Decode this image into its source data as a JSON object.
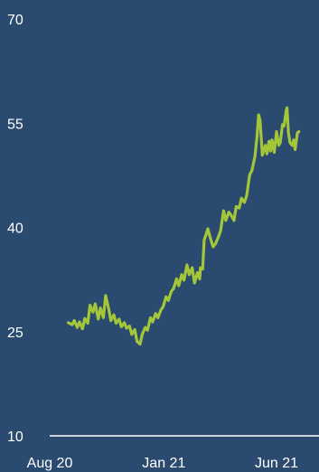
{
  "colors": {
    "background": "#2b4a6f",
    "line": "#a4c639",
    "axis": "#ffffff",
    "text": "#ffffff"
  },
  "chart_data": {
    "type": "line",
    "title": "",
    "xlabel": "",
    "ylabel": "",
    "ylim": [
      10,
      70
    ],
    "y_ticks": [
      10,
      25,
      40,
      55,
      70
    ],
    "x_ticks": [
      "Aug 20",
      "Jan 21",
      "Jun 21"
    ],
    "x_range": [
      "2020-08",
      "2021-07"
    ],
    "grid": false,
    "legend": "none",
    "series": [
      {
        "color": "#a4c639",
        "points": [
          [
            "2020-08-26",
            26.3
          ],
          [
            "2020-08-31",
            26.0
          ],
          [
            "2020-09-03",
            26.6
          ],
          [
            "2020-09-07",
            25.6
          ],
          [
            "2020-09-10",
            26.4
          ],
          [
            "2020-09-14",
            25.4
          ],
          [
            "2020-09-17",
            26.9
          ],
          [
            "2020-09-21",
            26.2
          ],
          [
            "2020-09-24",
            28.8
          ],
          [
            "2020-09-28",
            27.8
          ],
          [
            "2020-10-01",
            29.0
          ],
          [
            "2020-10-05",
            26.8
          ],
          [
            "2020-10-08",
            28.4
          ],
          [
            "2020-10-12",
            27.0
          ],
          [
            "2020-10-15",
            30.2
          ],
          [
            "2020-10-19",
            28.3
          ],
          [
            "2020-10-22",
            26.6
          ],
          [
            "2020-10-26",
            27.4
          ],
          [
            "2020-10-29",
            26.2
          ],
          [
            "2020-11-02",
            26.8
          ],
          [
            "2020-11-05",
            25.7
          ],
          [
            "2020-11-09",
            26.3
          ],
          [
            "2020-11-12",
            25.5
          ],
          [
            "2020-11-16",
            25.8
          ],
          [
            "2020-11-19",
            24.6
          ],
          [
            "2020-11-23",
            25.3
          ],
          [
            "2020-11-26",
            23.6
          ],
          [
            "2020-11-30",
            23.2
          ],
          [
            "2020-12-03",
            24.6
          ],
          [
            "2020-12-07",
            25.6
          ],
          [
            "2020-12-10",
            25.2
          ],
          [
            "2020-12-14",
            27.0
          ],
          [
            "2020-12-17",
            26.4
          ],
          [
            "2020-12-21",
            27.6
          ],
          [
            "2020-12-24",
            27.0
          ],
          [
            "2020-12-28",
            28.1
          ],
          [
            "2020-12-31",
            28.6
          ],
          [
            "2021-01-04",
            30.0
          ],
          [
            "2021-01-07",
            29.5
          ],
          [
            "2021-01-11",
            30.8
          ],
          [
            "2021-01-14",
            31.2
          ],
          [
            "2021-01-18",
            32.6
          ],
          [
            "2021-01-21",
            31.6
          ],
          [
            "2021-01-25",
            33.2
          ],
          [
            "2021-01-28",
            32.4
          ],
          [
            "2021-02-01",
            34.6
          ],
          [
            "2021-02-04",
            33.2
          ],
          [
            "2021-02-08",
            34.2
          ],
          [
            "2021-02-11",
            32.0
          ],
          [
            "2021-02-15",
            33.5
          ],
          [
            "2021-02-18",
            32.6
          ],
          [
            "2021-02-19",
            34.2
          ],
          [
            "2021-02-22",
            34.0
          ],
          [
            "2021-02-24",
            38.2
          ],
          [
            "2021-02-26",
            38.8
          ],
          [
            "2021-03-01",
            39.8
          ],
          [
            "2021-03-04",
            38.6
          ],
          [
            "2021-03-08",
            37.2
          ],
          [
            "2021-03-11",
            37.6
          ],
          [
            "2021-03-15",
            38.6
          ],
          [
            "2021-03-18",
            39.5
          ],
          [
            "2021-03-22",
            42.4
          ],
          [
            "2021-03-25",
            41.0
          ],
          [
            "2021-03-29",
            42.2
          ],
          [
            "2021-04-01",
            41.8
          ],
          [
            "2021-04-05",
            41.0
          ],
          [
            "2021-04-08",
            43.0
          ],
          [
            "2021-04-12",
            42.8
          ],
          [
            "2021-04-15",
            44.2
          ],
          [
            "2021-04-19",
            43.6
          ],
          [
            "2021-04-22",
            44.6
          ],
          [
            "2021-04-26",
            47.6
          ],
          [
            "2021-04-29",
            48.2
          ],
          [
            "2021-05-03",
            50.2
          ],
          [
            "2021-05-06",
            53.2
          ],
          [
            "2021-05-08",
            56.2
          ],
          [
            "2021-05-10",
            55.4
          ],
          [
            "2021-05-13",
            50.4
          ],
          [
            "2021-05-17",
            51.8
          ],
          [
            "2021-05-19",
            50.6
          ],
          [
            "2021-05-22",
            52.4
          ],
          [
            "2021-05-24",
            51.0
          ],
          [
            "2021-05-26",
            52.6
          ],
          [
            "2021-05-29",
            50.8
          ],
          [
            "2021-06-01",
            53.8
          ],
          [
            "2021-06-04",
            51.8
          ],
          [
            "2021-06-06",
            52.2
          ],
          [
            "2021-06-09",
            54.8
          ],
          [
            "2021-06-11",
            54.6
          ],
          [
            "2021-06-14",
            56.8
          ],
          [
            "2021-06-15",
            57.2
          ],
          [
            "2021-06-17",
            53.6
          ],
          [
            "2021-06-19",
            52.2
          ],
          [
            "2021-06-22",
            51.8
          ],
          [
            "2021-06-24",
            52.6
          ],
          [
            "2021-06-26",
            51.2
          ],
          [
            "2021-06-29",
            53.6
          ],
          [
            "2021-07-01",
            53.8
          ]
        ]
      }
    ]
  }
}
